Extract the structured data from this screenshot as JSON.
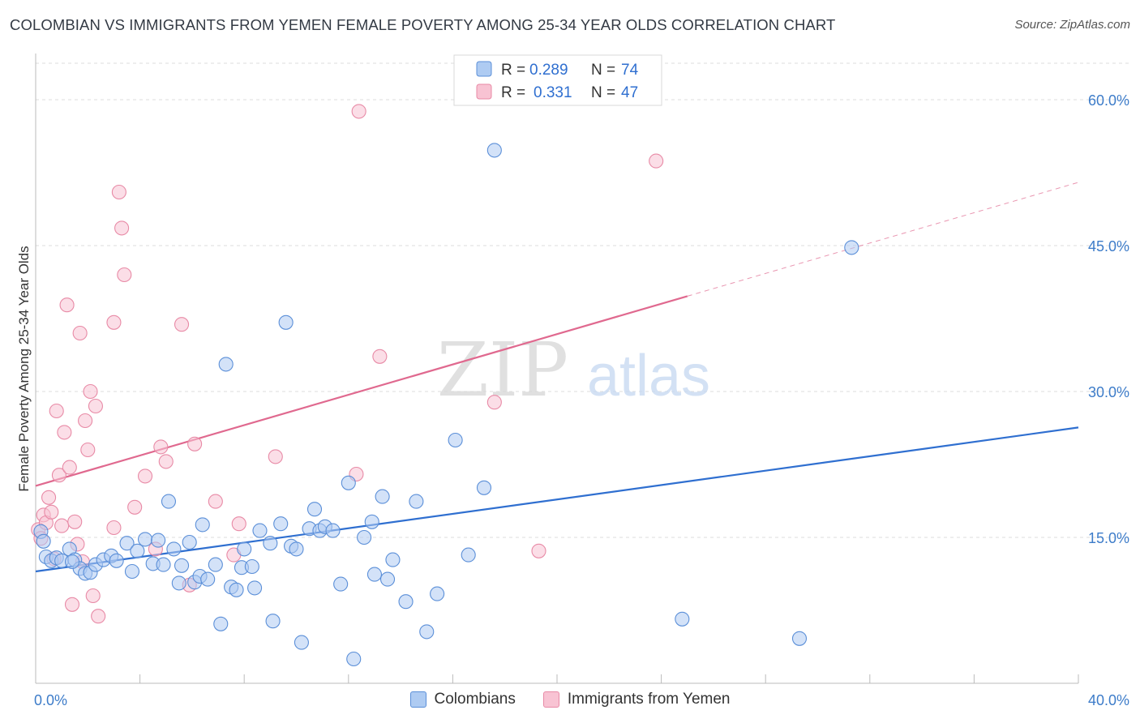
{
  "title": "COLOMBIAN VS IMMIGRANTS FROM YEMEN FEMALE POVERTY AMONG 25-34 YEAR OLDS CORRELATION CHART",
  "source": "Source: ZipAtlas.com",
  "watermark": {
    "zip": "ZIP",
    "atlas": "atlas"
  },
  "colors": {
    "blue_fill": "#aecbf2",
    "blue_stroke": "#5b8fd8",
    "blue_line": "#2f6fd0",
    "pink_fill": "#f8c3d3",
    "pink_stroke": "#e88aa6",
    "pink_line": "#e0698f",
    "grid": "#dddddd",
    "tick_text": "#3d7cc9"
  },
  "legend": {
    "rows": [
      {
        "r_label": "R = ",
        "r_value": "0.289",
        "n_label": "N = ",
        "n_value": "74"
      },
      {
        "r_label": "R = ",
        "r_value": "0.331",
        "n_label": "N = ",
        "n_value": "47"
      }
    ]
  },
  "bottom_legend": [
    "Colombians",
    "Immigrants from Yemen"
  ],
  "chart_data": {
    "type": "scatter",
    "title": "COLOMBIAN VS IMMIGRANTS FROM YEMEN FEMALE POVERTY AMONG 25-34 YEAR OLDS CORRELATION CHART",
    "xlabel": "",
    "ylabel": "Female Poverty Among 25-34 Year Olds",
    "xlim": [
      0,
      40
    ],
    "ylim": [
      0,
      64
    ],
    "x_tick_labels": [
      "0.0%",
      "40.0%"
    ],
    "y_ticks": [
      15,
      30,
      45,
      60
    ],
    "y_tick_labels": [
      "15.0%",
      "30.0%",
      "45.0%",
      "60.0%"
    ],
    "series": [
      {
        "name": "Colombians",
        "r": 0.289,
        "n": 74,
        "trend": {
          "x0": 0,
          "y0": 11.5,
          "x1": 40,
          "y1": 26.3
        },
        "points": [
          [
            0.2,
            15.6
          ],
          [
            0.3,
            14.6
          ],
          [
            0.4,
            13.0
          ],
          [
            0.6,
            12.6
          ],
          [
            0.8,
            12.9
          ],
          [
            1.0,
            12.6
          ],
          [
            1.3,
            13.8
          ],
          [
            1.5,
            12.7
          ],
          [
            1.7,
            11.8
          ],
          [
            1.9,
            11.3
          ],
          [
            2.1,
            11.4
          ],
          [
            2.3,
            12.2
          ],
          [
            2.6,
            12.7
          ],
          [
            2.9,
            13.1
          ],
          [
            3.1,
            12.6
          ],
          [
            3.5,
            14.4
          ],
          [
            3.7,
            11.5
          ],
          [
            3.9,
            13.6
          ],
          [
            4.2,
            14.8
          ],
          [
            4.5,
            12.3
          ],
          [
            4.7,
            14.7
          ],
          [
            4.9,
            12.2
          ],
          [
            5.1,
            18.7
          ],
          [
            5.3,
            13.8
          ],
          [
            5.5,
            10.3
          ],
          [
            5.6,
            12.1
          ],
          [
            5.9,
            14.5
          ],
          [
            6.1,
            10.4
          ],
          [
            6.3,
            11.0
          ],
          [
            6.4,
            16.3
          ],
          [
            6.6,
            10.7
          ],
          [
            6.9,
            12.2
          ],
          [
            7.1,
            6.1
          ],
          [
            7.3,
            32.8
          ],
          [
            7.5,
            9.9
          ],
          [
            7.7,
            9.6
          ],
          [
            7.9,
            11.9
          ],
          [
            8.0,
            13.8
          ],
          [
            8.3,
            12.0
          ],
          [
            8.4,
            9.8
          ],
          [
            8.6,
            15.7
          ],
          [
            9.0,
            14.4
          ],
          [
            9.1,
            6.4
          ],
          [
            9.4,
            16.4
          ],
          [
            9.6,
            37.1
          ],
          [
            9.8,
            14.1
          ],
          [
            10.0,
            13.8
          ],
          [
            10.2,
            4.2
          ],
          [
            10.5,
            15.9
          ],
          [
            10.7,
            17.9
          ],
          [
            10.9,
            15.7
          ],
          [
            11.1,
            16.1
          ],
          [
            11.4,
            15.7
          ],
          [
            11.7,
            10.2
          ],
          [
            12.0,
            20.6
          ],
          [
            12.2,
            2.5
          ],
          [
            12.6,
            15.0
          ],
          [
            12.9,
            16.6
          ],
          [
            13.0,
            11.2
          ],
          [
            13.3,
            19.2
          ],
          [
            13.5,
            10.7
          ],
          [
            13.7,
            12.7
          ],
          [
            14.2,
            8.4
          ],
          [
            14.6,
            18.7
          ],
          [
            15.0,
            5.3
          ],
          [
            15.4,
            9.2
          ],
          [
            16.1,
            25.0
          ],
          [
            16.6,
            13.2
          ],
          [
            17.2,
            20.1
          ],
          [
            17.6,
            54.8
          ],
          [
            24.8,
            6.6
          ],
          [
            29.3,
            4.6
          ],
          [
            31.3,
            44.8
          ],
          [
            1.4,
            12.5
          ]
        ]
      },
      {
        "name": "Immigrants from Yemen",
        "r": 0.331,
        "n": 47,
        "trend_solid": {
          "x0": 0,
          "y0": 20.3,
          "x1": 25.0,
          "y1": 39.8
        },
        "trend_dashed": {
          "x0": 25.0,
          "y0": 39.8,
          "x1": 40,
          "y1": 51.5
        },
        "points": [
          [
            0.1,
            15.8
          ],
          [
            0.2,
            14.9
          ],
          [
            0.3,
            17.3
          ],
          [
            0.4,
            16.5
          ],
          [
            0.5,
            19.1
          ],
          [
            0.6,
            17.6
          ],
          [
            0.7,
            12.8
          ],
          [
            0.8,
            28.0
          ],
          [
            0.9,
            21.4
          ],
          [
            1.0,
            16.2
          ],
          [
            1.1,
            25.8
          ],
          [
            1.2,
            38.9
          ],
          [
            1.3,
            22.2
          ],
          [
            1.4,
            8.1
          ],
          [
            1.5,
            16.6
          ],
          [
            1.6,
            14.3
          ],
          [
            1.7,
            36.0
          ],
          [
            1.8,
            12.5
          ],
          [
            1.9,
            27.0
          ],
          [
            2.0,
            24.0
          ],
          [
            2.1,
            30.0
          ],
          [
            2.2,
            9.0
          ],
          [
            2.3,
            28.5
          ],
          [
            2.4,
            6.9
          ],
          [
            3.0,
            16.0
          ],
          [
            3.0,
            37.1
          ],
          [
            3.2,
            50.5
          ],
          [
            3.3,
            46.8
          ],
          [
            3.4,
            42.0
          ],
          [
            3.8,
            18.1
          ],
          [
            4.2,
            21.3
          ],
          [
            4.6,
            13.8
          ],
          [
            4.8,
            24.3
          ],
          [
            5.0,
            22.8
          ],
          [
            5.6,
            36.9
          ],
          [
            5.9,
            10.1
          ],
          [
            6.1,
            24.6
          ],
          [
            6.9,
            18.7
          ],
          [
            7.6,
            13.2
          ],
          [
            7.8,
            16.4
          ],
          [
            9.2,
            23.3
          ],
          [
            12.3,
            21.5
          ],
          [
            12.4,
            58.8
          ],
          [
            13.2,
            33.6
          ],
          [
            17.6,
            28.9
          ],
          [
            19.3,
            13.6
          ],
          [
            23.8,
            53.7
          ]
        ]
      }
    ]
  }
}
